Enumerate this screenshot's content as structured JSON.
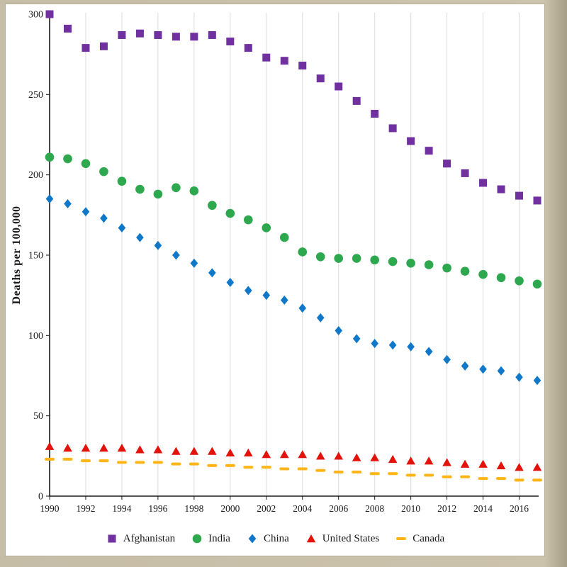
{
  "frame": {
    "background": "#c9c0aa"
  },
  "chart_data": {
    "type": "scatter",
    "title": "",
    "xlabel": "",
    "ylabel": "Deaths per 100,000",
    "ylim": [
      0,
      300
    ],
    "yticks": [
      0,
      50,
      100,
      150,
      200,
      250,
      300
    ],
    "xtick_step": 2,
    "grid": "vertical-only",
    "gridline_color": "#dcdcdc",
    "axis_color": "#1a1a1a",
    "legend_position": "bottom",
    "x": [
      1990,
      1991,
      1992,
      1993,
      1994,
      1995,
      1996,
      1997,
      1998,
      1999,
      2000,
      2001,
      2002,
      2003,
      2004,
      2005,
      2006,
      2007,
      2008,
      2009,
      2010,
      2011,
      2012,
      2013,
      2014,
      2015,
      2016,
      2017
    ],
    "series": [
      {
        "name": "Afghanistan",
        "marker": "square",
        "color": "#7030A0",
        "values": [
          300,
          291,
          279,
          280,
          287,
          288,
          287,
          286,
          286,
          287,
          283,
          279,
          273,
          271,
          268,
          260,
          255,
          246,
          238,
          229,
          221,
          215,
          207,
          201,
          195,
          191,
          187,
          184
        ]
      },
      {
        "name": "India",
        "marker": "circle",
        "color": "#2DA84E",
        "values": [
          211,
          210,
          207,
          202,
          196,
          191,
          188,
          192,
          190,
          181,
          176,
          172,
          167,
          161,
          152,
          149,
          148,
          148,
          147,
          146,
          145,
          144,
          142,
          140,
          138,
          136,
          134,
          132
        ]
      },
      {
        "name": "China",
        "marker": "diamond",
        "color": "#0F78C8",
        "values": [
          185,
          182,
          177,
          173,
          167,
          161,
          156,
          150,
          145,
          139,
          133,
          128,
          125,
          122,
          117,
          111,
          103,
          98,
          95,
          94,
          93,
          90,
          85,
          81,
          79,
          78,
          74,
          72
        ]
      },
      {
        "name": "United States",
        "marker": "triangle",
        "color": "#E3120B",
        "values": [
          31,
          30,
          30,
          30,
          30,
          29,
          29,
          28,
          28,
          28,
          27,
          27,
          26,
          26,
          26,
          25,
          25,
          24,
          24,
          23,
          22,
          22,
          21,
          20,
          20,
          19,
          18,
          18
        ]
      },
      {
        "name": "Canada",
        "marker": "dash",
        "color": "#FFB515",
        "values": [
          23,
          23,
          22,
          22,
          21,
          21,
          21,
          20,
          20,
          19,
          19,
          18,
          18,
          17,
          17,
          16,
          15,
          15,
          14,
          14,
          13,
          13,
          12,
          12,
          11,
          11,
          10,
          10
        ]
      }
    ]
  }
}
